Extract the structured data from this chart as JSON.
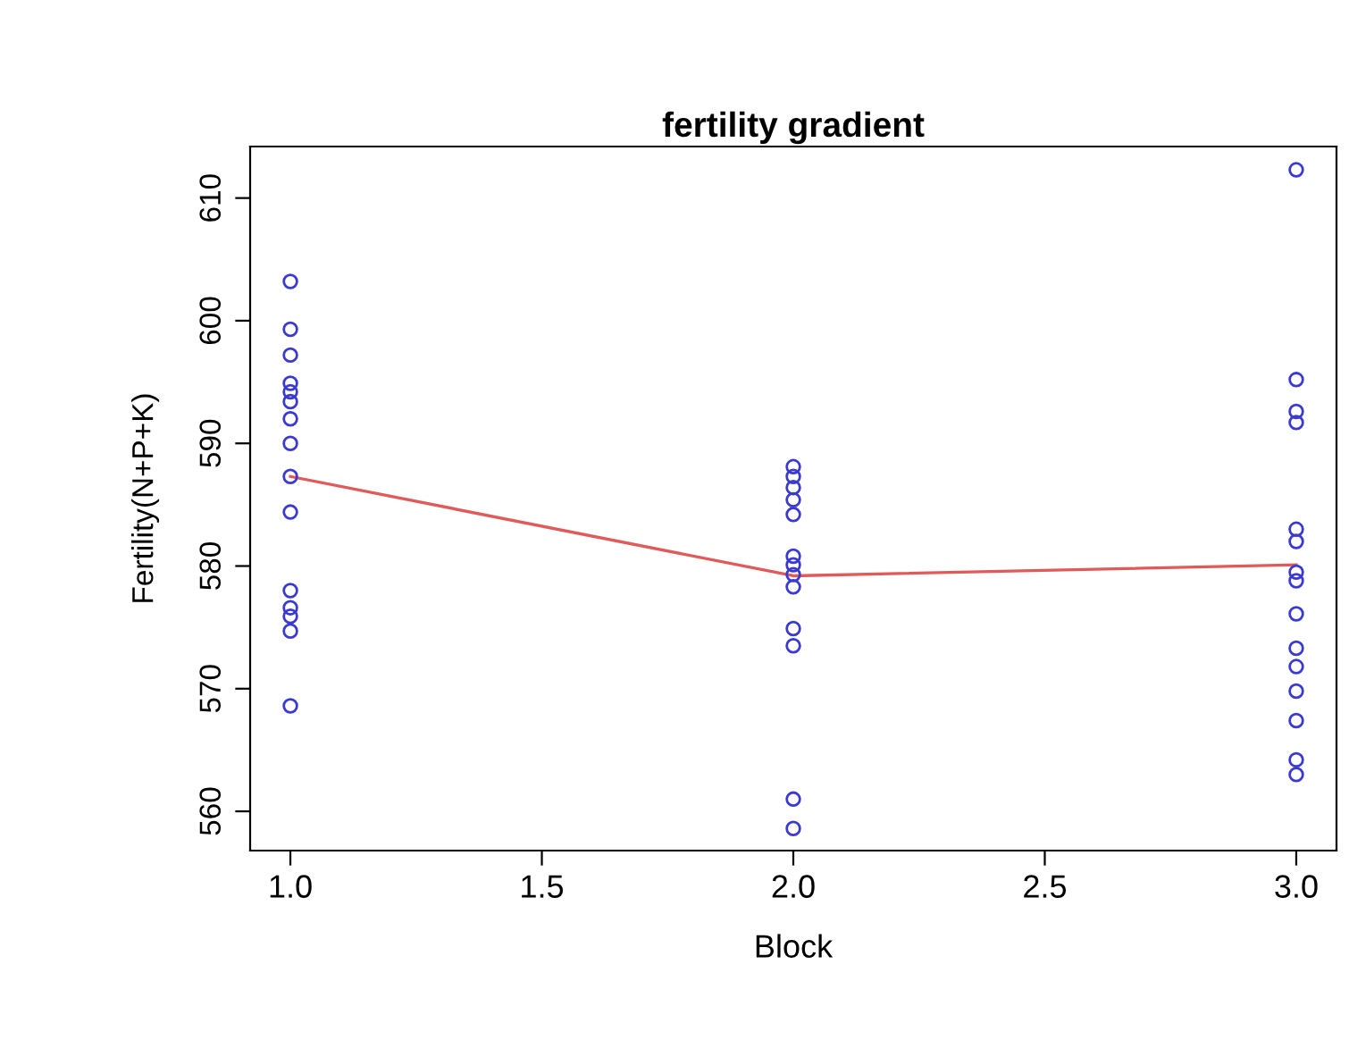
{
  "chart_data": {
    "type": "scatter",
    "title": "fertility gradient",
    "xlabel": "Block",
    "ylabel": "Fertility(N+P+K)",
    "series": [
      {
        "color": "#3a3ad0",
        "marker": "circle",
        "x": [
          1,
          1,
          1,
          1,
          1,
          1,
          1,
          1,
          1,
          1,
          1,
          1,
          1,
          1,
          1,
          2,
          2,
          2,
          2,
          2,
          2,
          2,
          2,
          2,
          2,
          2,
          2,
          2,
          3,
          3,
          3,
          3,
          3,
          3,
          3,
          3,
          3,
          3,
          3,
          3,
          3,
          3,
          3
        ],
        "values": [
          603.2,
          599.3,
          597.2,
          594.9,
          594.2,
          593.4,
          592,
          590,
          587.3,
          584.4,
          578,
          576.6,
          575.9,
          574.7,
          568.6,
          588.1,
          587.3,
          586.4,
          585.4,
          584.2,
          580.8,
          580.1,
          579.3,
          578.3,
          574.9,
          573.5,
          561,
          558.6,
          612.3,
          595.2,
          592.6,
          591.7,
          583,
          582,
          579.5,
          578.8,
          576.1,
          573.3,
          571.8,
          569.8,
          567.4,
          564.2,
          563
        ]
      },
      {
        "type": "line",
        "color": "#e05a5a",
        "marker": "none",
        "line_style": "solid",
        "x": [
          1,
          2,
          3
        ],
        "values": [
          587.3,
          579.2,
          580.1
        ]
      }
    ],
    "xlim": [
      0.92,
      3.08
    ],
    "xticks": [
      {
        "value": 1,
        "label": "1.0"
      },
      {
        "value": 1.5,
        "label": "1.5"
      },
      {
        "value": 2,
        "label": "2.0"
      },
      {
        "value": 2.5,
        "label": "2.5"
      },
      {
        "value": 3,
        "label": "3.0"
      }
    ],
    "ylim": [
      556.8,
      614.2
    ],
    "yticks": [
      560,
      570,
      580,
      590,
      600,
      610
    ],
    "grid": false
  }
}
